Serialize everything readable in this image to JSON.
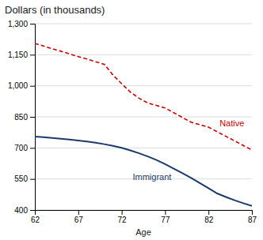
{
  "chart_data": {
    "type": "line",
    "title": "Dollars (in thousands)",
    "x_label": "Age",
    "x": [
      62,
      63,
      64,
      65,
      66,
      67,
      68,
      69,
      70,
      71,
      72,
      73,
      74,
      75,
      76,
      77,
      78,
      79,
      80,
      81,
      82,
      83,
      84,
      85,
      86,
      87
    ],
    "series": [
      {
        "name": "Native",
        "color": "#cc0000",
        "line_style": "dashed",
        "values": [
          1205,
          1192,
          1179,
          1167,
          1154,
          1141,
          1129,
          1116,
          1104,
          1052,
          1010,
          970,
          940,
          917,
          905,
          893,
          870,
          847,
          824,
          812,
          800,
          778,
          756,
          734,
          712,
          690
        ]
      },
      {
        "name": "Immigrant",
        "color": "#1a3a6b",
        "line_style": "solid",
        "values": [
          755,
          752,
          748,
          744,
          740,
          736,
          731,
          725,
          718,
          710,
          700,
          688,
          674,
          659,
          642,
          622,
          600,
          578,
          555,
          530,
          505,
          480,
          463,
          447,
          433,
          420
        ]
      }
    ],
    "xlim": [
      62,
      87
    ],
    "ylim": [
      400,
      1300
    ],
    "xticks": [
      62,
      67,
      72,
      77,
      82,
      87
    ],
    "yticks": [
      400,
      550,
      700,
      850,
      {
        "value": 1000,
        "label": "1,000"
      },
      {
        "value": 1150,
        "label": "1,150"
      },
      {
        "value": 1300,
        "label": "1,300"
      }
    ],
    "grid": "y"
  }
}
